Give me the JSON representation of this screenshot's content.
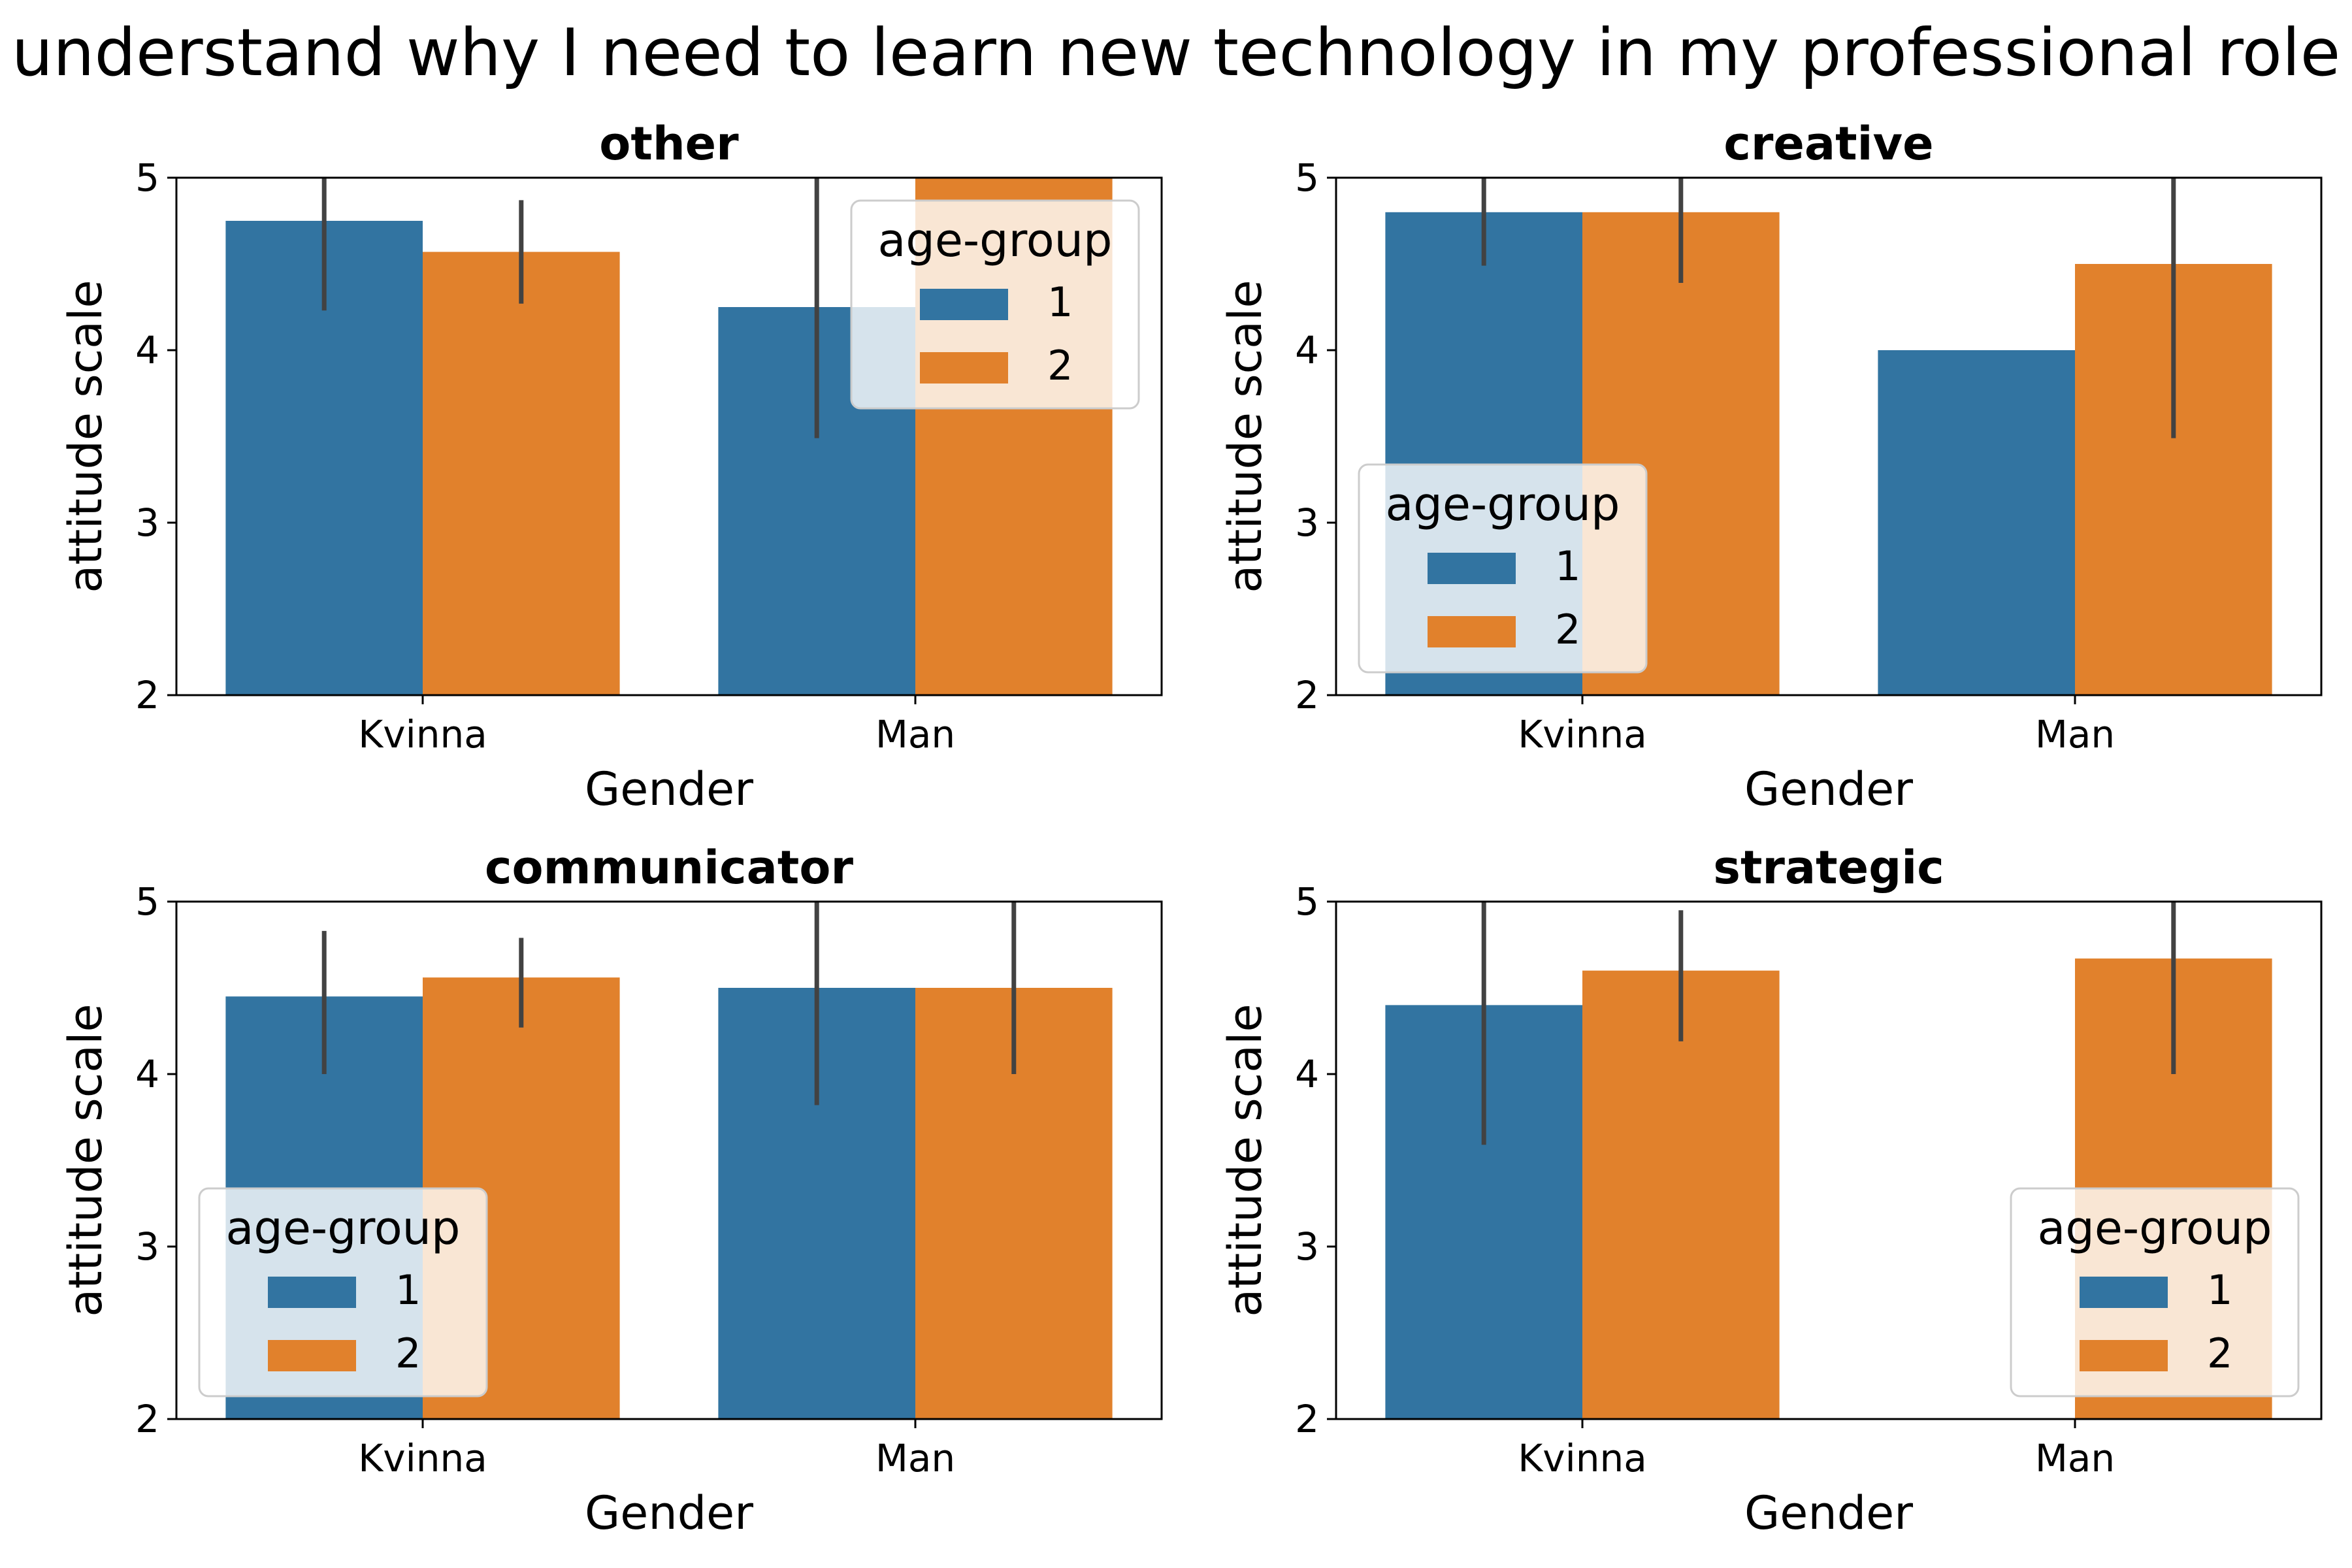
{
  "figure": {
    "suptitle": "understand why I need to learn new technology in my professional role"
  },
  "colors": {
    "series_1": "#3274a1",
    "series_2": "#e1812c",
    "errorbar": "#424242",
    "axis": "#000000",
    "legend_bg": "#ffffff",
    "legend_border": "#cccccc"
  },
  "legend_title": "age-group",
  "chart_data": [
    {
      "type": "bar",
      "title": "other",
      "xlabel": "Gender",
      "ylabel": "attitude scale",
      "categories": [
        "Kvinna",
        "Man"
      ],
      "ylim": [
        2,
        5
      ],
      "yticks": [
        "2",
        "3",
        "4",
        "5"
      ],
      "legend_position": "upper right",
      "series": [
        {
          "name": "1",
          "values": [
            4.75,
            4.25
          ],
          "ci_low": [
            4.23,
            3.49
          ],
          "ci_high": [
            5.0,
            5.0
          ]
        },
        {
          "name": "2",
          "values": [
            4.57,
            5.0
          ],
          "ci_low": [
            4.27,
            null
          ],
          "ci_high": [
            4.87,
            null
          ]
        }
      ]
    },
    {
      "type": "bar",
      "title": "creative",
      "xlabel": "Gender",
      "ylabel": "attitude scale",
      "categories": [
        "Kvinna",
        "Man"
      ],
      "ylim": [
        2,
        5
      ],
      "yticks": [
        "2",
        "3",
        "4",
        "5"
      ],
      "legend_position": "lower left",
      "series": [
        {
          "name": "1",
          "values": [
            4.8,
            4.0
          ],
          "ci_low": [
            4.49,
            null
          ],
          "ci_high": [
            5.0,
            null
          ]
        },
        {
          "name": "2",
          "values": [
            4.8,
            4.5
          ],
          "ci_low": [
            4.39,
            3.49
          ],
          "ci_high": [
            5.0,
            5.0
          ]
        }
      ]
    },
    {
      "type": "bar",
      "title": "communicator",
      "xlabel": "Gender",
      "ylabel": "attitude scale",
      "categories": [
        "Kvinna",
        "Man"
      ],
      "ylim": [
        2,
        5
      ],
      "yticks": [
        "2",
        "3",
        "4",
        "5"
      ],
      "legend_position": "lower left",
      "series": [
        {
          "name": "1",
          "values": [
            4.45,
            4.5
          ],
          "ci_low": [
            4.0,
            3.82
          ],
          "ci_high": [
            4.83,
            5.0
          ]
        },
        {
          "name": "2",
          "values": [
            4.56,
            4.5
          ],
          "ci_low": [
            4.27,
            4.0
          ],
          "ci_high": [
            4.79,
            5.0
          ]
        }
      ]
    },
    {
      "type": "bar",
      "title": "strategic",
      "xlabel": "Gender",
      "ylabel": "attitude scale",
      "categories": [
        "Kvinna",
        "Man"
      ],
      "ylim": [
        2,
        5
      ],
      "yticks": [
        "2",
        "3",
        "4",
        "5"
      ],
      "legend_position": "lower right",
      "series": [
        {
          "name": "1",
          "values": [
            4.4,
            null
          ],
          "ci_low": [
            3.59,
            null
          ],
          "ci_high": [
            5.0,
            null
          ]
        },
        {
          "name": "2",
          "values": [
            4.6,
            4.67
          ],
          "ci_low": [
            4.19,
            4.0
          ],
          "ci_high": [
            4.95,
            5.0
          ]
        }
      ]
    }
  ]
}
